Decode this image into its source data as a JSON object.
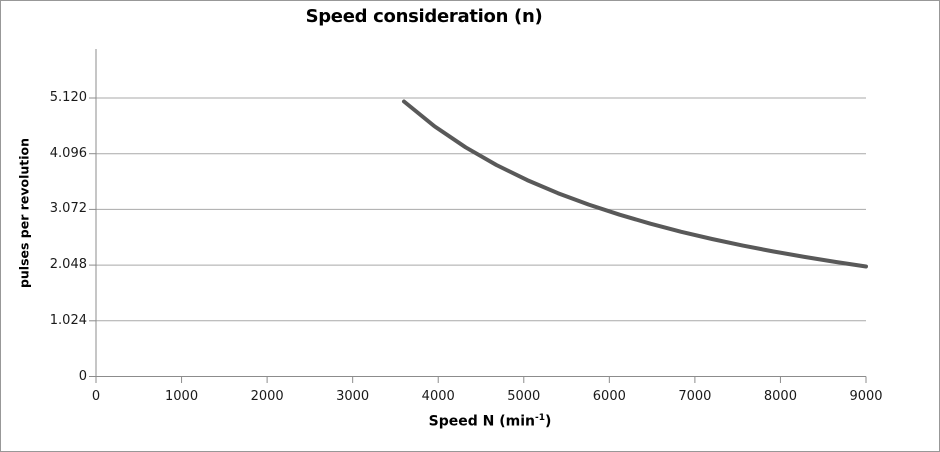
{
  "colors": {
    "background": "#ffffff",
    "border": "#989898",
    "gridline": "#a9a9a9",
    "axis": "#8c8c8c",
    "tick_text": "#1a1a1a",
    "title_text": "#000000",
    "curve": "#595959"
  },
  "chart_data": {
    "type": "line",
    "title": "Speed consideration (n)",
    "ylabel": "pulses per revolution",
    "xlabel": "Speed N (min⁻¹)",
    "xlabel_parts": {
      "main": "Speed N (min",
      "sup": "-1",
      "close": ")"
    },
    "xlim": [
      0,
      9000
    ],
    "ylim": [
      0,
      6020
    ],
    "grid": "horizontal-only",
    "legend": "none",
    "x_ticks": {
      "values": [
        0,
        1000,
        2000,
        3000,
        4000,
        5000,
        6000,
        7000,
        8000,
        9000
      ],
      "labels": [
        "0",
        "1000",
        "2000",
        "3000",
        "4000",
        "5000",
        "6000",
        "7000",
        "8000",
        "9000"
      ]
    },
    "y_ticks": {
      "values": [
        0,
        1024,
        2048,
        3072,
        4096,
        5120
      ],
      "labels": [
        "0",
        "1.024",
        "2.048",
        "3.072",
        "4.096",
        "5.120"
      ]
    },
    "series": [
      {
        "name": "pulses per revolution",
        "color": "#595959",
        "smooth": true,
        "points": [
          [
            3600,
            5056
          ],
          [
            3960,
            4596
          ],
          [
            4320,
            4213
          ],
          [
            4680,
            3889
          ],
          [
            5040,
            3611
          ],
          [
            5400,
            3370
          ],
          [
            5760,
            3160
          ],
          [
            6120,
            2974
          ],
          [
            6480,
            2809
          ],
          [
            6840,
            2661
          ],
          [
            7200,
            2528
          ],
          [
            7560,
            2407
          ],
          [
            7920,
            2298
          ],
          [
            8280,
            2198
          ],
          [
            8640,
            2106
          ],
          [
            9000,
            2022
          ]
        ]
      }
    ]
  }
}
